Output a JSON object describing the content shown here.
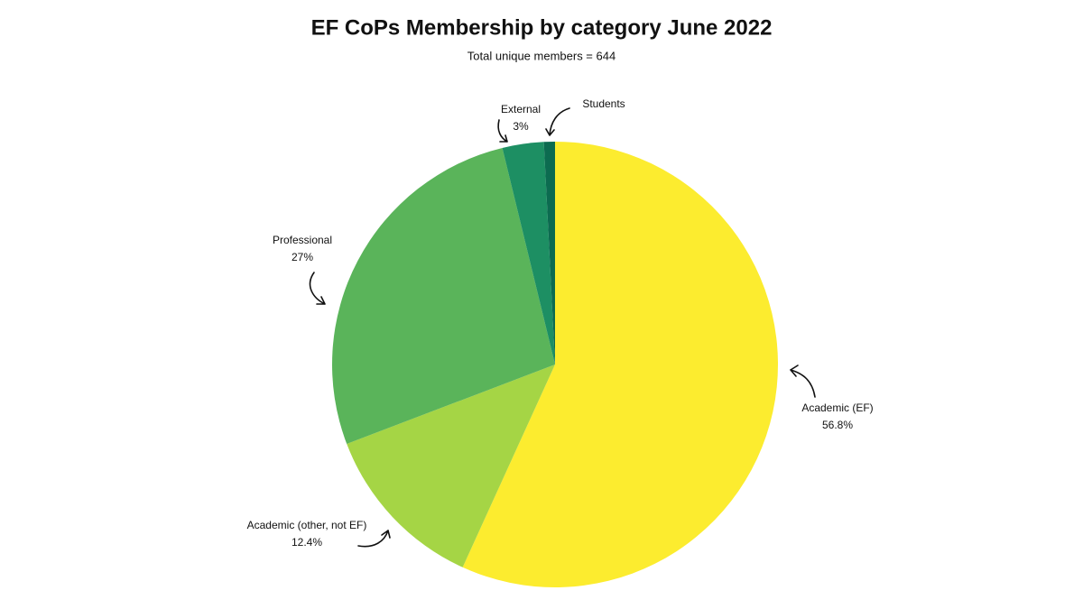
{
  "chart_data": {
    "type": "pie",
    "title": "EF CoPs Membership by category June 2022",
    "subtitle": "Total unique members = 644",
    "categories": [
      "Academic (EF)",
      "Academic (other, not EF)",
      "Professional",
      "External",
      "Students"
    ],
    "values": [
      56.8,
      12.4,
      27,
      3,
      0.8
    ],
    "value_labels": [
      "56.8%",
      "12.4%",
      "27%",
      "3%",
      null
    ],
    "colors": [
      "#fcec2f",
      "#a5d545",
      "#5ab45a",
      "#1d8f63",
      "#0c6b50"
    ]
  }
}
